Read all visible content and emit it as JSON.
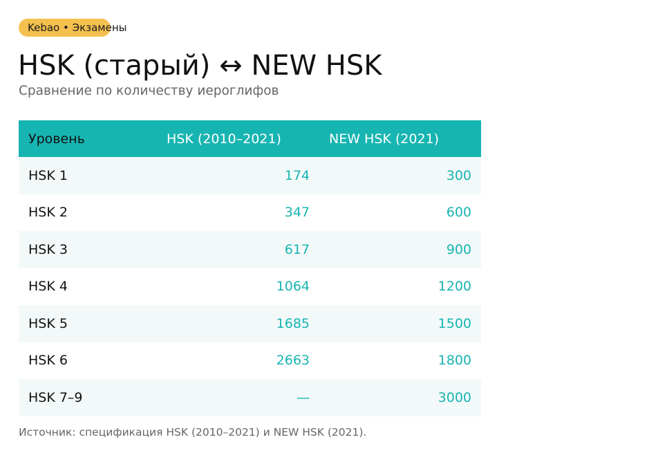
{
  "badge": "Kebao • Экзамены",
  "title": "HSK (старый) ↔ NEW HSK",
  "subtitle": "Сравнение по количеству иероглифов",
  "table": {
    "headers": [
      "Уровень",
      "HSK (2010–2021)",
      "NEW HSK (2021)"
    ],
    "rows": [
      [
        "HSK 1",
        "174",
        "300"
      ],
      [
        "HSK 2",
        "347",
        "600"
      ],
      [
        "HSK 3",
        "617",
        "900"
      ],
      [
        "HSK 4",
        "1064",
        "1200"
      ],
      [
        "HSK 5",
        "1685",
        "1500"
      ],
      [
        "HSK 6",
        "2663",
        "1800"
      ],
      [
        "HSK 7–9",
        "—",
        "3000"
      ]
    ]
  },
  "source": "Источник: спецификация HSK (2010–2021) и NEW HSK (2021).",
  "colors": {
    "accent": "#17b5b1",
    "badge": "#f4c04e",
    "row_stripe": "#f3f9f9"
  }
}
